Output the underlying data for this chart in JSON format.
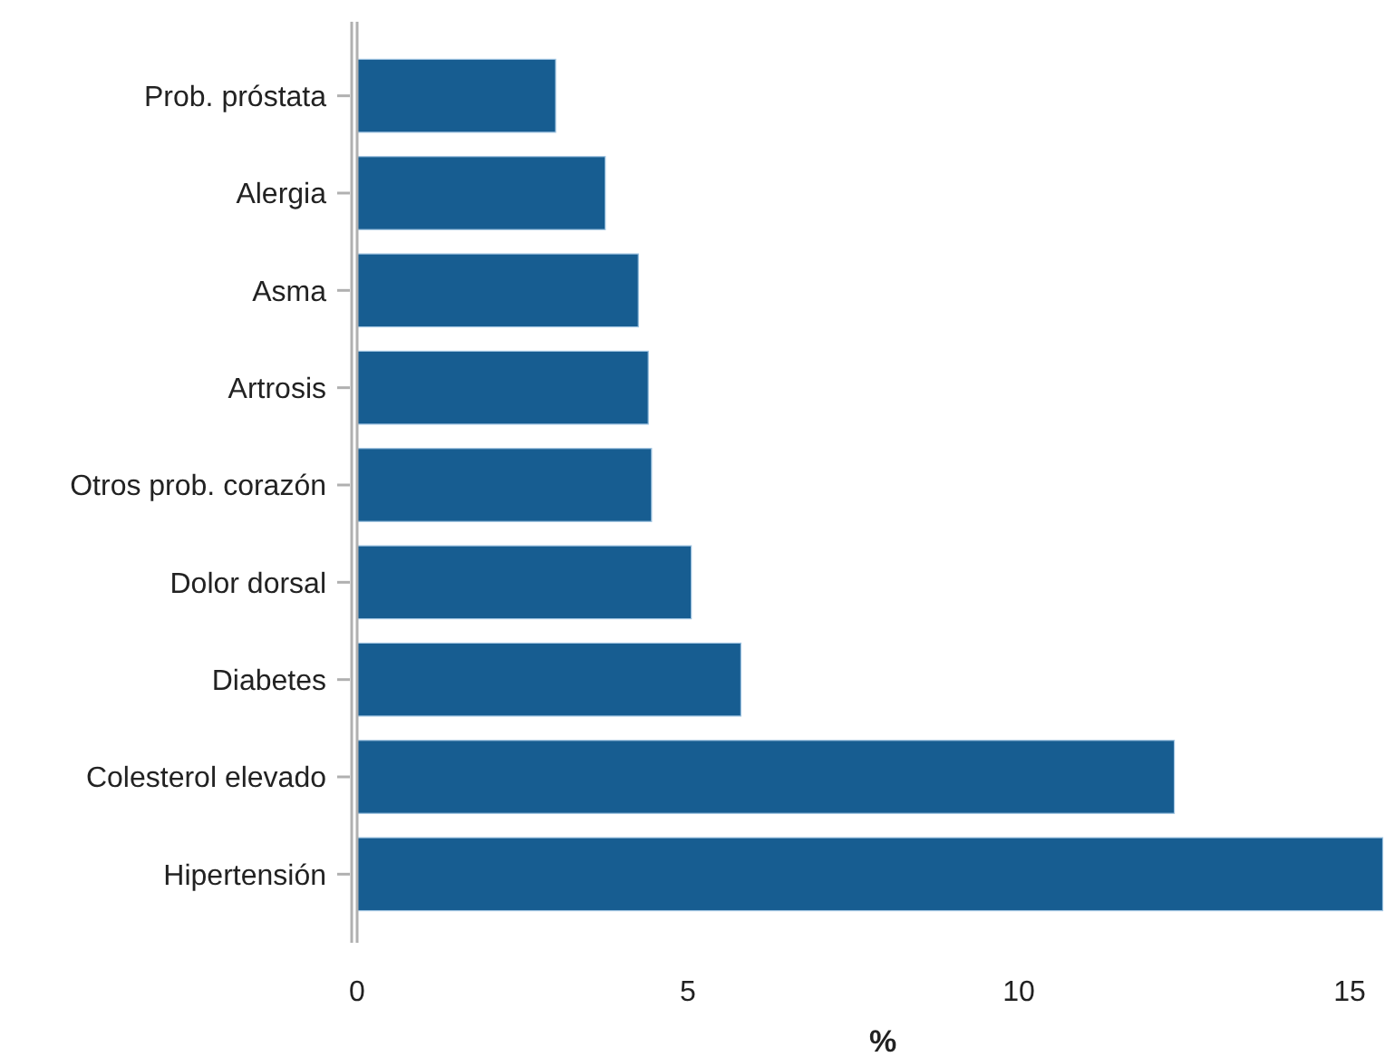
{
  "chart_data": {
    "type": "bar",
    "orientation": "horizontal",
    "xlabel": "%",
    "categories": [
      "Prob. próstata",
      "Alergia",
      "Asma",
      "Artrosis",
      "Otros prob. corazón",
      "Dolor dorsal",
      "Diabetes",
      "Colesterol elevado",
      "Hipertensión"
    ],
    "values": [
      3.0,
      3.75,
      4.25,
      4.4,
      4.45,
      5.05,
      5.8,
      12.35,
      15.5
    ],
    "color": "#175d91",
    "xlim": [
      0,
      15.5
    ],
    "xticks": [
      0,
      5,
      10,
      15
    ],
    "grid": false
  }
}
